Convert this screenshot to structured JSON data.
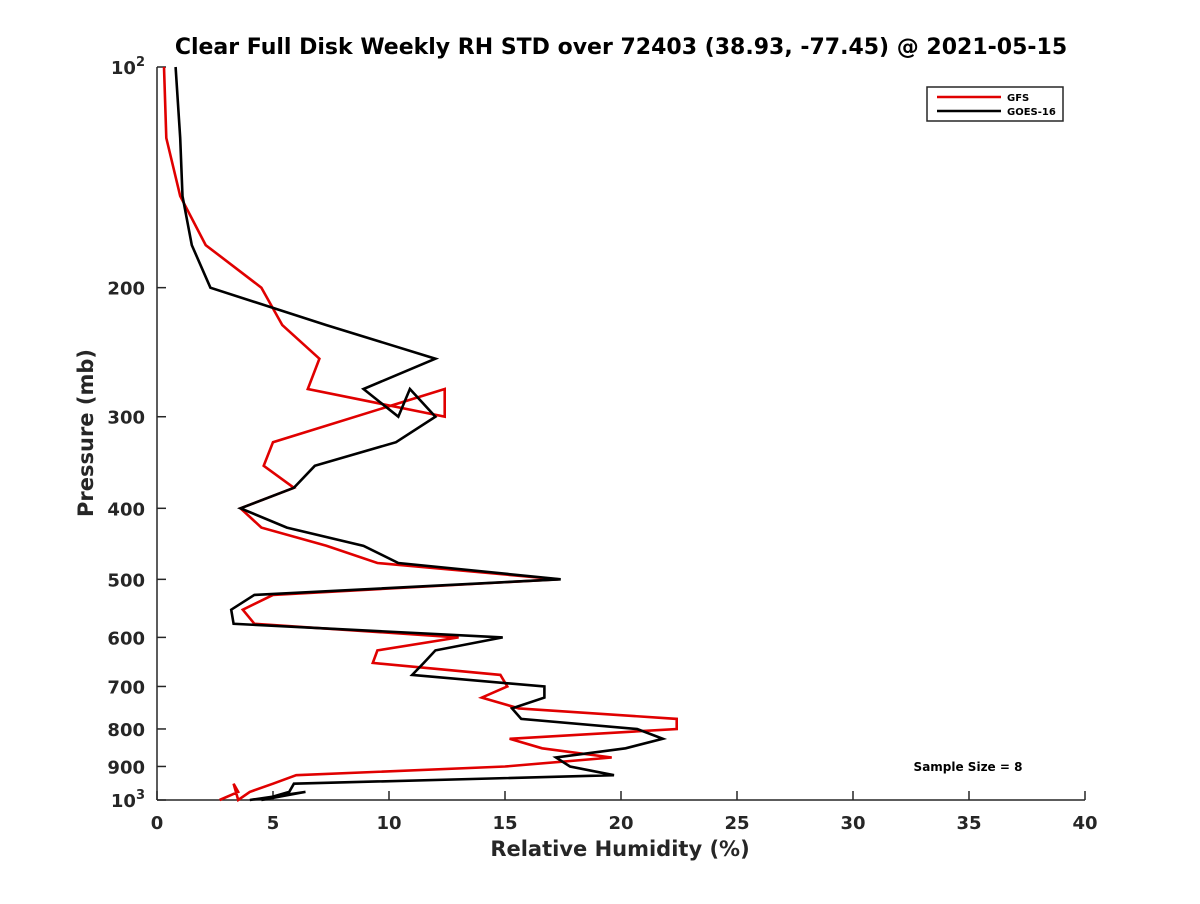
{
  "chart_data": {
    "type": "line",
    "title": "Clear Full Disk Weekly RH STD over 72403 (38.93, -77.45) @ 2021-05-15",
    "xlabel": "Relative Humidity (%)",
    "ylabel": "Pressure (mb)",
    "xlim": [
      0,
      40
    ],
    "ylim": [
      100,
      1000
    ],
    "yscale": "log",
    "y_reversed": true,
    "grid": false,
    "legend_position": "top-right",
    "x_ticks": [
      "0",
      "5",
      "10",
      "15",
      "20",
      "25",
      "30",
      "35",
      "40"
    ],
    "x_tick_values": [
      0,
      5,
      10,
      15,
      20,
      25,
      30,
      35,
      40
    ],
    "y_ticks": [
      {
        "value": 100,
        "base": "10",
        "exp": "2"
      },
      {
        "value": 200,
        "label": "200"
      },
      {
        "value": 300,
        "label": "300"
      },
      {
        "value": 400,
        "label": "400"
      },
      {
        "value": 500,
        "label": "500"
      },
      {
        "value": 600,
        "label": "600"
      },
      {
        "value": 700,
        "label": "700"
      },
      {
        "value": 800,
        "label": "800"
      },
      {
        "value": 900,
        "label": "900"
      },
      {
        "value": 1000,
        "base": "10",
        "exp": "3"
      }
    ],
    "annotation": "Sample Size = 8",
    "series": [
      {
        "name": "GFS",
        "color": "#e00000",
        "points": [
          [
            0.3,
            100
          ],
          [
            0.4,
            125
          ],
          [
            1.0,
            150
          ],
          [
            2.1,
            175
          ],
          [
            4.5,
            200
          ],
          [
            5.4,
            225
          ],
          [
            7.0,
            250
          ],
          [
            6.5,
            275
          ],
          [
            12.4,
            300
          ],
          [
            12.4,
            275
          ],
          [
            5.0,
            325
          ],
          [
            4.6,
            350
          ],
          [
            5.9,
            375
          ],
          [
            3.6,
            400
          ],
          [
            4.5,
            425
          ],
          [
            7.3,
            450
          ],
          [
            9.5,
            475
          ],
          [
            17.3,
            500
          ],
          [
            5.0,
            525
          ],
          [
            3.7,
            550
          ],
          [
            4.2,
            575
          ],
          [
            13.0,
            600
          ],
          [
            9.5,
            625
          ],
          [
            9.3,
            650
          ],
          [
            14.8,
            675
          ],
          [
            15.1,
            700
          ],
          [
            14.0,
            725
          ],
          [
            15.6,
            750
          ],
          [
            22.4,
            775
          ],
          [
            22.4,
            800
          ],
          [
            15.2,
            825
          ],
          [
            16.6,
            850
          ],
          [
            19.6,
            875
          ],
          [
            15.0,
            900
          ],
          [
            6.0,
            925
          ],
          [
            5.0,
            950
          ],
          [
            4.0,
            975
          ],
          [
            3.5,
            1000
          ],
          [
            3.3,
            950
          ],
          [
            3.5,
            975
          ],
          [
            2.7,
            1000
          ]
        ]
      },
      {
        "name": "GOES-16",
        "color": "#000000",
        "points": [
          [
            0.8,
            100
          ],
          [
            1.0,
            125
          ],
          [
            1.1,
            150
          ],
          [
            1.5,
            175
          ],
          [
            2.3,
            200
          ],
          [
            7.3,
            225
          ],
          [
            12.0,
            250
          ],
          [
            8.9,
            275
          ],
          [
            10.4,
            300
          ],
          [
            10.9,
            275
          ],
          [
            12.0,
            300
          ],
          [
            10.3,
            325
          ],
          [
            6.8,
            350
          ],
          [
            5.9,
            375
          ],
          [
            3.6,
            400
          ],
          [
            5.6,
            425
          ],
          [
            8.9,
            450
          ],
          [
            10.4,
            475
          ],
          [
            17.4,
            500
          ],
          [
            4.2,
            525
          ],
          [
            3.2,
            550
          ],
          [
            3.3,
            575
          ],
          [
            14.9,
            600
          ],
          [
            12.0,
            625
          ],
          [
            11.5,
            650
          ],
          [
            11.0,
            675
          ],
          [
            16.7,
            700
          ],
          [
            16.7,
            725
          ],
          [
            15.3,
            750
          ],
          [
            15.7,
            775
          ],
          [
            20.7,
            800
          ],
          [
            21.8,
            825
          ],
          [
            20.2,
            850
          ],
          [
            17.2,
            875
          ],
          [
            17.8,
            900
          ],
          [
            19.7,
            925
          ],
          [
            5.9,
            950
          ],
          [
            5.7,
            975
          ],
          [
            4.5,
            1000
          ],
          [
            6.4,
            975
          ],
          [
            4.0,
            1000
          ]
        ]
      }
    ]
  }
}
